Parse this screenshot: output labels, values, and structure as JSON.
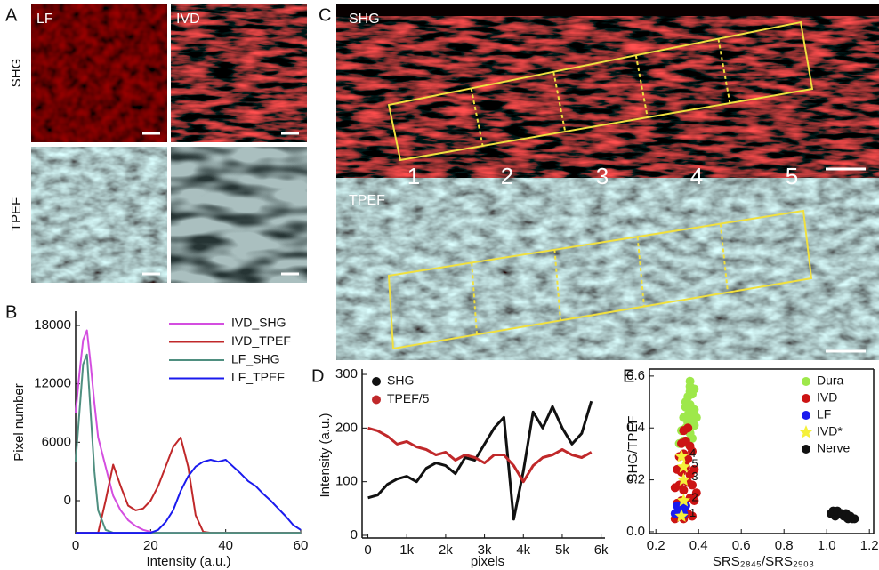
{
  "figure": {
    "panel_letters": [
      "A",
      "B",
      "C",
      "D",
      "E"
    ],
    "panel_a": {
      "columns": [
        "LF",
        "IVD"
      ],
      "rows": [
        "SHG",
        "TPEF"
      ]
    },
    "panel_c": {
      "rows": [
        "SHG",
        "TPEF"
      ],
      "regions": [
        "1",
        "2",
        "3",
        "4",
        "5"
      ]
    }
  },
  "chart_data": [
    {
      "type": "line",
      "xlabel": "Intensity (a.u.)",
      "ylabel": "Pixel number",
      "x": [
        0,
        1,
        2,
        3,
        4,
        5,
        6,
        8,
        10,
        12,
        14,
        16,
        18,
        20,
        22,
        24,
        26,
        28,
        30,
        32,
        34,
        36,
        38,
        40,
        42,
        44,
        46,
        48,
        50,
        52,
        54,
        56,
        58,
        60
      ],
      "xlim": [
        0,
        60
      ],
      "xticks": [
        0,
        20,
        40,
        60
      ],
      "ylim": [
        -3380,
        19460
      ],
      "yticks": [
        0,
        6000,
        12000,
        18000
      ],
      "legend": "upper right",
      "series": [
        {
          "name": "IVD_SHG",
          "color": "#d44ee0",
          "values": [
            9000,
            13000,
            16500,
            17500,
            14000,
            10000,
            6500,
            3500,
            500,
            -1000,
            -2000,
            -2600,
            -3000,
            -3200,
            -3300,
            -3300,
            -3300,
            -3300,
            -3300,
            -3300,
            -3300,
            -3300,
            -3300,
            -3300,
            -3300,
            -3300,
            -3300,
            -3300,
            -3300,
            -3300,
            -3300,
            -3300,
            -3300,
            -3300
          ]
        },
        {
          "name": "IVD_TPEF",
          "color": "#c0282a",
          "values": [
            -3300,
            -3300,
            -3300,
            -3300,
            -3300,
            -3300,
            -3300,
            0,
            3700,
            1500,
            -500,
            -1000,
            -800,
            0,
            1500,
            3500,
            5500,
            6500,
            3500,
            -1500,
            -3200,
            -3300,
            -3300,
            -3300,
            -3300,
            -3300,
            -3300,
            -3300,
            -3300,
            -3300,
            -3300,
            -3300,
            -3300,
            -3300
          ]
        },
        {
          "name": "LF_SHG",
          "color": "#4f8f80",
          "values": [
            4000,
            9000,
            14000,
            15000,
            9000,
            3000,
            -1000,
            -3000,
            -3300,
            -3300,
            -3300,
            -3300,
            -3300,
            -3300,
            -3300,
            -3300,
            -3300,
            -3300,
            -3300,
            -3300,
            -3300,
            -3300,
            -3300,
            -3300,
            -3300,
            -3300,
            -3300,
            -3300,
            -3300,
            -3300,
            -3300,
            -3300,
            -3300,
            -3300
          ]
        },
        {
          "name": "LF_TPEF",
          "color": "#1a1aee",
          "values": [
            -3300,
            -3300,
            -3300,
            -3300,
            -3300,
            -3300,
            -3300,
            -3300,
            -3300,
            -3300,
            -3300,
            -3300,
            -3300,
            -3300,
            -3000,
            -2200,
            -1000,
            1000,
            2500,
            3500,
            4000,
            4200,
            4000,
            4200,
            3500,
            2800,
            2000,
            1500,
            700,
            0,
            -800,
            -1600,
            -2500,
            -3000
          ]
        }
      ]
    },
    {
      "type": "line",
      "xlabel": "pixels",
      "ylabel": "Intensity (a.u.)",
      "markers": true,
      "x": [
        0,
        250,
        500,
        750,
        1000,
        1250,
        1500,
        1750,
        2000,
        2250,
        2500,
        2750,
        3000,
        3250,
        3500,
        3750,
        4000,
        4250,
        4500,
        4750,
        5000,
        5250,
        5500,
        5750
      ],
      "xlim": [
        -150,
        6100
      ],
      "xticks": [
        0,
        {
          "value": 1000,
          "label": "1k"
        },
        {
          "value": 2000,
          "label": "2k"
        },
        {
          "value": 3000,
          "label": "3k"
        },
        {
          "value": 4000,
          "label": "4k"
        },
        {
          "value": 5000,
          "label": "5k"
        },
        {
          "value": 6000,
          "label": "6k"
        }
      ],
      "ylim": [
        -5,
        310
      ],
      "yticks": [
        0,
        100,
        200,
        300
      ],
      "legend": "upper left",
      "series": [
        {
          "name": "SHG",
          "color": "#111111",
          "values": [
            70,
            75,
            95,
            105,
            110,
            100,
            125,
            135,
            130,
            115,
            145,
            140,
            170,
            200,
            220,
            30,
            120,
            230,
            200,
            240,
            200,
            170,
            190,
            250
          ]
        },
        {
          "name": "TPEF/5",
          "color": "#c0282a",
          "values": [
            200,
            195,
            185,
            170,
            175,
            165,
            160,
            150,
            155,
            140,
            150,
            145,
            135,
            150,
            150,
            130,
            100,
            130,
            145,
            150,
            160,
            150,
            145,
            155
          ]
        }
      ]
    },
    {
      "type": "scatter",
      "xlabel": "SRS₂₈₄₅/SRS₂₉₀₃",
      "ylabel": "SHG/TPEF",
      "xlim": [
        0.17,
        1.22
      ],
      "xticks": [
        0.2,
        0.4,
        0.6,
        0.8,
        {
          "value": 1,
          "label": "1.0"
        },
        1.2
      ],
      "ylim": [
        -0.007,
        0.627
      ],
      "yticks": [
        {
          "value": 0,
          "label": "0.0"
        },
        0.2,
        0.4,
        0.6
      ],
      "legend": "upper right",
      "series": [
        {
          "name": "Dura",
          "color": "#9ee84a",
          "marker": "circle",
          "x": [
            0.31,
            0.33,
            0.35,
            0.37,
            0.32,
            0.34,
            0.36,
            0.38,
            0.33,
            0.35,
            0.37,
            0.34,
            0.36,
            0.38,
            0.35,
            0.37,
            0.36,
            0.38,
            0.34,
            0.36,
            0.35,
            0.37,
            0.39,
            0.36
          ],
          "y": [
            0.34,
            0.35,
            0.34,
            0.36,
            0.39,
            0.4,
            0.38,
            0.41,
            0.44,
            0.45,
            0.43,
            0.48,
            0.49,
            0.47,
            0.52,
            0.53,
            0.56,
            0.55,
            0.5,
            0.58,
            0.42,
            0.46,
            0.44,
            0.54
          ]
        },
        {
          "name": "IVD",
          "color": "#cc1414",
          "marker": "circle",
          "x": [
            0.29,
            0.31,
            0.33,
            0.35,
            0.37,
            0.3,
            0.32,
            0.34,
            0.36,
            0.38,
            0.29,
            0.31,
            0.33,
            0.35,
            0.37,
            0.3,
            0.32,
            0.34,
            0.36,
            0.38,
            0.31,
            0.33,
            0.35,
            0.37,
            0.32,
            0.34,
            0.36,
            0.33,
            0.35,
            0.39
          ],
          "y": [
            0.05,
            0.06,
            0.05,
            0.07,
            0.06,
            0.11,
            0.12,
            0.1,
            0.13,
            0.12,
            0.17,
            0.18,
            0.16,
            0.19,
            0.18,
            0.24,
            0.23,
            0.25,
            0.22,
            0.24,
            0.29,
            0.3,
            0.28,
            0.31,
            0.34,
            0.35,
            0.33,
            0.39,
            0.4,
            0.15
          ]
        },
        {
          "name": "LF",
          "color": "#1a1aee",
          "marker": "circle",
          "x": [
            0.29,
            0.31,
            0.33,
            0.3,
            0.32,
            0.34
          ],
          "y": [
            0.07,
            0.08,
            0.07,
            0.1,
            0.09,
            0.1
          ]
        },
        {
          "name": "IVD*",
          "color": "#f5f03a",
          "marker": "star",
          "x": [
            0.32,
            0.33,
            0.33,
            0.32,
            0.33
          ],
          "y": [
            0.06,
            0.12,
            0.2,
            0.29,
            0.25
          ],
          "point_labels": [
            "1",
            "2",
            "3",
            "4",
            "5"
          ]
        },
        {
          "name": "Nerve",
          "color": "#111111",
          "marker": "circle",
          "x": [
            1.02,
            1.04,
            1.06,
            1.08,
            1.1,
            1.12,
            1.03,
            1.05,
            1.07,
            1.09,
            1.11,
            1.13
          ],
          "y": [
            0.07,
            0.06,
            0.07,
            0.06,
            0.05,
            0.05,
            0.08,
            0.08,
            0.07,
            0.07,
            0.06,
            0.05
          ]
        }
      ]
    }
  ]
}
